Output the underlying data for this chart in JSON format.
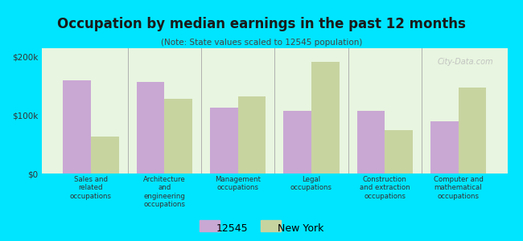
{
  "title": "Occupation by median earnings in the past 12 months",
  "subtitle": "(Note: State values scaled to 12545 population)",
  "categories": [
    "Sales and\nrelated\noccupations",
    "Architecture\nand\nengineering\noccupations",
    "Management\noccupations",
    "Legal\noccupations",
    "Construction\nand extraction\noccupations",
    "Computer and\nmathematical\noccupations"
  ],
  "values_12545": [
    160000,
    157000,
    113000,
    108000,
    108000,
    90000
  ],
  "values_ny": [
    63000,
    128000,
    132000,
    192000,
    74000,
    147000
  ],
  "color_12545": "#c9a8d4",
  "color_ny": "#c8d4a0",
  "background_chart": "#e8f5e0",
  "background_fig": "#00e5ff",
  "ylim": [
    0,
    215000
  ],
  "yticks": [
    0,
    100000,
    200000
  ],
  "ytick_labels": [
    "$0",
    "$100k",
    "$200k"
  ],
  "legend_labels": [
    "12545",
    "New York"
  ],
  "bar_width": 0.38,
  "watermark": "City-Data.com"
}
